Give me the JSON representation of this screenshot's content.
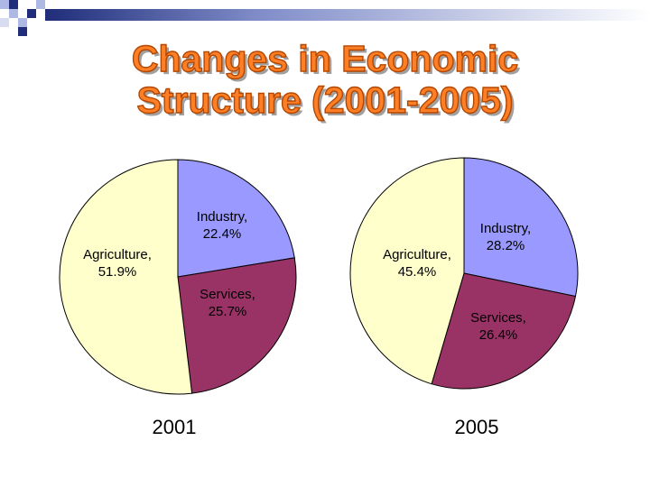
{
  "slide": {
    "title_line1": "Changes in Economic",
    "title_line2": "Structure (2001-2005)"
  },
  "colors": {
    "industry": "#9999ff",
    "services": "#993366",
    "agriculture": "#ffffcc",
    "title": "#ff7f27",
    "deco_dark": "#1f2d7a",
    "deco_light": "#aeb8e4"
  },
  "chart_data": [
    {
      "type": "pie",
      "caption": "2001",
      "categories": [
        "Industry",
        "Services",
        "Agriculture"
      ],
      "values": [
        22.4,
        25.7,
        51.9
      ],
      "labels": [
        [
          "Industry,",
          "22.4%"
        ],
        [
          "Services,",
          "25.7%"
        ],
        [
          "Agriculture,",
          "51.9%"
        ]
      ],
      "start": "12 o'clock, clockwise",
      "legend": "none"
    },
    {
      "type": "pie",
      "caption": "2005",
      "categories": [
        "Industry",
        "Services",
        "Agriculture"
      ],
      "values": [
        28.2,
        26.4,
        45.4
      ],
      "labels": [
        [
          "Industry,",
          "28.2%"
        ],
        [
          "Services,",
          "26.4%"
        ],
        [
          "Agriculture,",
          "45.4%"
        ]
      ],
      "start": "12 o'clock, clockwise",
      "legend": "none"
    }
  ]
}
